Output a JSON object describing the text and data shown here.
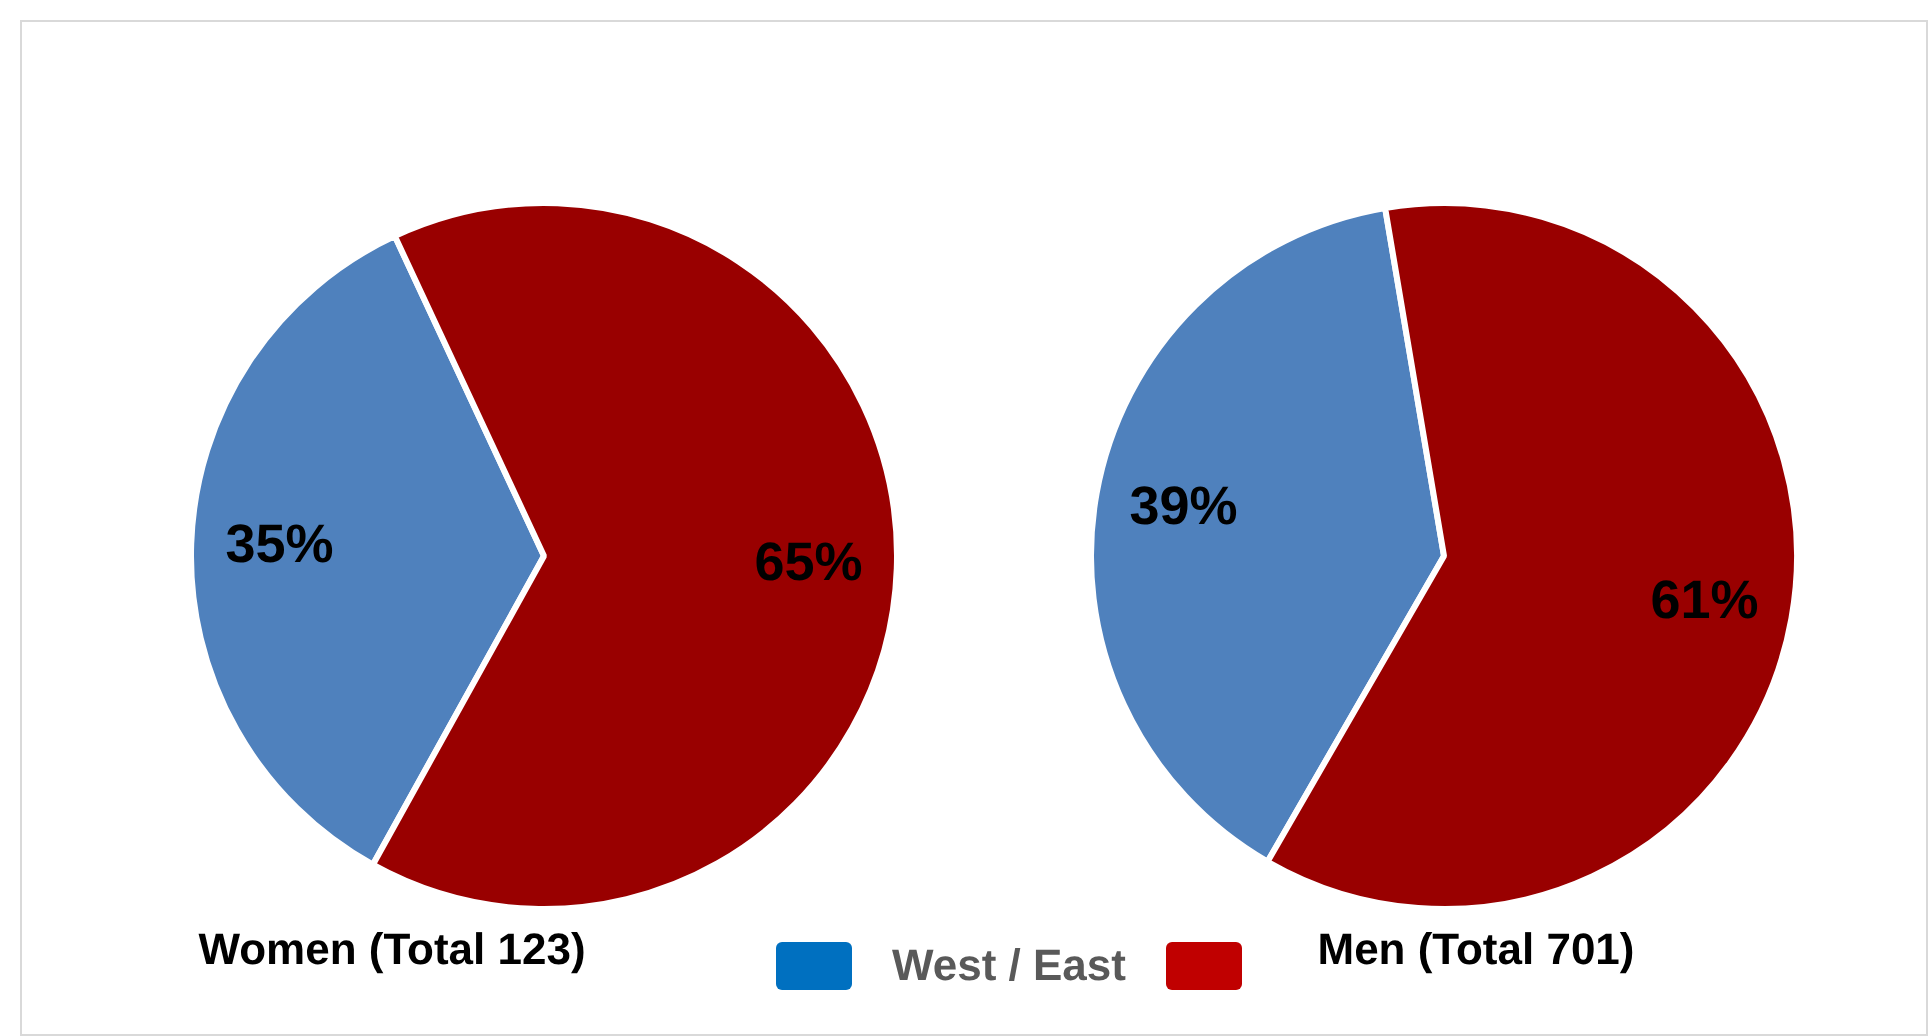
{
  "chart_data": [
    {
      "type": "pie",
      "title": "Women (Total 123)",
      "categories": [
        null,
        null
      ],
      "values": [
        35,
        65
      ],
      "colors": [
        "#4f81bd",
        "#990000"
      ],
      "value_labels": [
        "35%",
        "65%"
      ],
      "annotations": [
        "West / East"
      ]
    },
    {
      "type": "pie",
      "title": "Men (Total 701)",
      "categories": [
        null,
        null
      ],
      "values": [
        39,
        61
      ],
      "colors": [
        "#4f81bd",
        "#990000"
      ],
      "value_labels": [
        "39%",
        "61%"
      ]
    }
  ]
}
